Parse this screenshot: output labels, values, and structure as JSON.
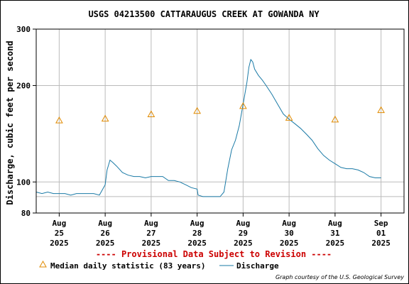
{
  "chart_data": {
    "type": "line",
    "title": "USGS 04213500 CATTARAUGUS CREEK AT GOWANDA NY",
    "ylabel": "Discharge, cubic feet per second",
    "xlabel": "",
    "y_scale": "log",
    "ylim": [
      80,
      300
    ],
    "y_ticks": [
      80,
      100,
      200,
      300
    ],
    "y_tick_labels": [
      "80",
      "100",
      "200",
      "300"
    ],
    "y_minor_gridlines": [
      90
    ],
    "x_range": [
      "2025-08-24T12:00",
      "2025-09-01T12:00"
    ],
    "x_ticks": [
      {
        "lines": [
          "Aug",
          "25",
          "2025"
        ],
        "at": "2025-08-25T00:00"
      },
      {
        "lines": [
          "Aug",
          "26",
          "2025"
        ],
        "at": "2025-08-26T00:00"
      },
      {
        "lines": [
          "Aug",
          "27",
          "2025"
        ],
        "at": "2025-08-27T00:00"
      },
      {
        "lines": [
          "Aug",
          "28",
          "2025"
        ],
        "at": "2025-08-28T00:00"
      },
      {
        "lines": [
          "Aug",
          "29",
          "2025"
        ],
        "at": "2025-08-29T00:00"
      },
      {
        "lines": [
          "Aug",
          "30",
          "2025"
        ],
        "at": "2025-08-30T00:00"
      },
      {
        "lines": [
          "Aug",
          "31",
          "2025"
        ],
        "at": "2025-08-31T00:00"
      },
      {
        "lines": [
          "Sep",
          "01",
          "2025"
        ],
        "at": "2025-09-01T00:00"
      }
    ],
    "grid": true,
    "series": [
      {
        "name": "Discharge",
        "color": "#1a7aa6",
        "style": "line",
        "points": [
          [
            "2025-08-24T12:00",
            93
          ],
          [
            "2025-08-24T15:00",
            92
          ],
          [
            "2025-08-24T18:00",
            93
          ],
          [
            "2025-08-24T21:00",
            92
          ],
          [
            "2025-08-25T00:00",
            92
          ],
          [
            "2025-08-25T03:00",
            92
          ],
          [
            "2025-08-25T06:00",
            91
          ],
          [
            "2025-08-25T09:00",
            92
          ],
          [
            "2025-08-25T12:00",
            92
          ],
          [
            "2025-08-25T15:00",
            92
          ],
          [
            "2025-08-25T18:00",
            92
          ],
          [
            "2025-08-25T21:00",
            91
          ],
          [
            "2025-08-26T00:00",
            98
          ],
          [
            "2025-08-26T01:00",
            109
          ],
          [
            "2025-08-26T02:30",
            117
          ],
          [
            "2025-08-26T04:00",
            115
          ],
          [
            "2025-08-26T06:00",
            112
          ],
          [
            "2025-08-26T09:00",
            107
          ],
          [
            "2025-08-26T12:00",
            105
          ],
          [
            "2025-08-26T15:00",
            104
          ],
          [
            "2025-08-26T18:00",
            104
          ],
          [
            "2025-08-26T21:00",
            103
          ],
          [
            "2025-08-27T00:00",
            104
          ],
          [
            "2025-08-27T03:00",
            104
          ],
          [
            "2025-08-27T06:00",
            104
          ],
          [
            "2025-08-27T09:00",
            101
          ],
          [
            "2025-08-27T12:00",
            101
          ],
          [
            "2025-08-27T15:00",
            100
          ],
          [
            "2025-08-27T18:00",
            98
          ],
          [
            "2025-08-27T21:00",
            96
          ],
          [
            "2025-08-28T00:00",
            95
          ],
          [
            "2025-08-28T00:30",
            91
          ],
          [
            "2025-08-28T03:00",
            90
          ],
          [
            "2025-08-28T06:00",
            90
          ],
          [
            "2025-08-28T09:00",
            90
          ],
          [
            "2025-08-28T12:00",
            90
          ],
          [
            "2025-08-28T14:00",
            93
          ],
          [
            "2025-08-28T16:00",
            110
          ],
          [
            "2025-08-28T18:00",
            126
          ],
          [
            "2025-08-28T20:00",
            135
          ],
          [
            "2025-08-28T22:00",
            150
          ],
          [
            "2025-08-29T00:00",
            175
          ],
          [
            "2025-08-29T02:00",
            205
          ],
          [
            "2025-08-29T03:00",
            228
          ],
          [
            "2025-08-29T04:00",
            241
          ],
          [
            "2025-08-29T05:00",
            237
          ],
          [
            "2025-08-29T06:00",
            225
          ],
          [
            "2025-08-29T08:00",
            215
          ],
          [
            "2025-08-29T10:00",
            208
          ],
          [
            "2025-08-29T12:00",
            200
          ],
          [
            "2025-08-29T15:00",
            188
          ],
          [
            "2025-08-29T18:00",
            175
          ],
          [
            "2025-08-29T21:00",
            163
          ],
          [
            "2025-08-30T00:00",
            157
          ],
          [
            "2025-08-30T03:00",
            152
          ],
          [
            "2025-08-30T06:00",
            147
          ],
          [
            "2025-08-30T09:00",
            141
          ],
          [
            "2025-08-30T12:00",
            135
          ],
          [
            "2025-08-30T15:00",
            127
          ],
          [
            "2025-08-30T18:00",
            121
          ],
          [
            "2025-08-30T21:00",
            117
          ],
          [
            "2025-08-31T00:00",
            114
          ],
          [
            "2025-08-31T03:00",
            111
          ],
          [
            "2025-08-31T06:00",
            110
          ],
          [
            "2025-08-31T09:00",
            110
          ],
          [
            "2025-08-31T12:00",
            109
          ],
          [
            "2025-08-31T15:00",
            107
          ],
          [
            "2025-08-31T18:00",
            104
          ],
          [
            "2025-08-31T21:00",
            103
          ],
          [
            "2025-09-01T00:00",
            103
          ]
        ]
      },
      {
        "name": "Median daily statistic (83 years)",
        "color": "#e08a00",
        "style": "triangle",
        "points": [
          [
            "2025-08-25T00:00",
            156
          ],
          [
            "2025-08-26T00:00",
            158
          ],
          [
            "2025-08-27T00:00",
            163
          ],
          [
            "2025-08-28T00:00",
            167
          ],
          [
            "2025-08-29T00:00",
            173
          ],
          [
            "2025-08-30T00:00",
            159
          ],
          [
            "2025-08-31T00:00",
            157
          ],
          [
            "2025-09-01T00:00",
            168
          ]
        ]
      }
    ],
    "legend_position": "bottom-left",
    "annotation": "---- Provisional Data Subject to Revision ----",
    "credit": "Graph courtesy of the U.S. Geological Survey"
  },
  "colors": {
    "frame": "#000000",
    "grid": "#bbbbbb",
    "annotation": "#cc0000",
    "discharge": "#1a7aa6",
    "median": "#e08a00"
  }
}
